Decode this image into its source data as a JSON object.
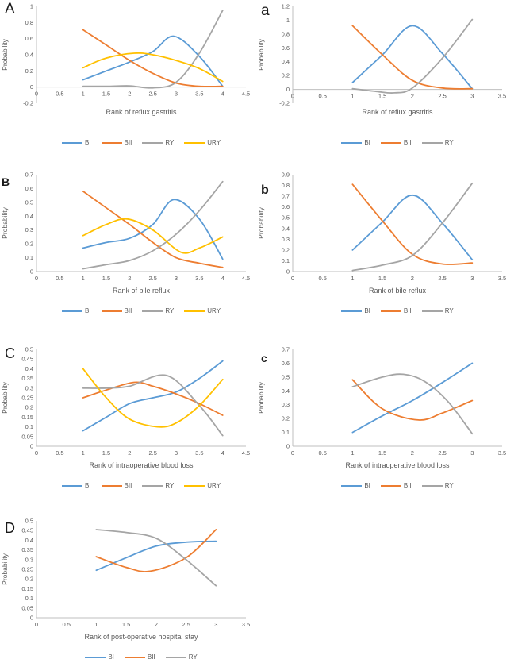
{
  "figure": {
    "background": "#ffffff",
    "axis_color": "#BFBFBF",
    "text_color": "#595959",
    "label_color": "#1a1a1a"
  },
  "palette": {
    "BI": "#5B9BD5",
    "BII": "#ED7D31",
    "RY": "#A5A5A5",
    "URY": "#FFC000"
  },
  "chart_data": [
    {
      "panel_label": "A",
      "type": "line",
      "title": "",
      "xlabel": "Rank of reflux gastritis",
      "ylabel": "Probability",
      "xlim": [
        0,
        4.5
      ],
      "xstep": 0.5,
      "ylim": [
        -0.2,
        1
      ],
      "ystep": 0.2,
      "grid": false,
      "legend_position": "bottom",
      "series": [
        {
          "name": "BI",
          "color": "#5B9BD5",
          "points": [
            [
              1,
              0.09
            ],
            [
              1.5,
              0.2
            ],
            [
              2,
              0.31
            ],
            [
              2.5,
              0.44
            ],
            [
              2.95,
              0.63
            ],
            [
              3.5,
              0.38
            ],
            [
              4,
              0.01
            ]
          ]
        },
        {
          "name": "BII",
          "color": "#ED7D31",
          "points": [
            [
              1,
              0.71
            ],
            [
              1.5,
              0.52
            ],
            [
              2,
              0.33
            ],
            [
              2.5,
              0.17
            ],
            [
              3,
              0.05
            ],
            [
              3.5,
              0.01
            ],
            [
              4,
              0.01
            ]
          ]
        },
        {
          "name": "RY",
          "color": "#A5A5A5",
          "points": [
            [
              1,
              0.01
            ],
            [
              1.5,
              0.01
            ],
            [
              2,
              0.015
            ],
            [
              2.5,
              -0.01
            ],
            [
              3,
              0.06
            ],
            [
              3.5,
              0.42
            ],
            [
              4,
              0.95
            ]
          ]
        },
        {
          "name": "URY",
          "color": "#FFC000",
          "points": [
            [
              1,
              0.24
            ],
            [
              1.5,
              0.36
            ],
            [
              2.1,
              0.42
            ],
            [
              2.5,
              0.4
            ],
            [
              3,
              0.33
            ],
            [
              3.5,
              0.23
            ],
            [
              4,
              0.07
            ]
          ]
        }
      ]
    },
    {
      "panel_label": "a",
      "type": "line",
      "title": "",
      "xlabel": "Rank of reflux gastritis",
      "ylabel": "Probability",
      "xlim": [
        0,
        3.5
      ],
      "xstep": 0.5,
      "ylim": [
        -0.2,
        1.2
      ],
      "ystep": 0.2,
      "grid": false,
      "legend_position": "bottom",
      "series": [
        {
          "name": "BI",
          "color": "#5B9BD5",
          "points": [
            [
              1,
              0.1
            ],
            [
              1.5,
              0.5
            ],
            [
              2,
              0.92
            ],
            [
              2.5,
              0.52
            ],
            [
              3,
              0.01
            ]
          ]
        },
        {
          "name": "BII",
          "color": "#ED7D31",
          "points": [
            [
              1,
              0.92
            ],
            [
              1.5,
              0.5
            ],
            [
              2,
              0.13
            ],
            [
              2.5,
              0.02
            ],
            [
              3,
              0.01
            ]
          ]
        },
        {
          "name": "RY",
          "color": "#A5A5A5",
          "points": [
            [
              1,
              0.01
            ],
            [
              1.4,
              -0.03
            ],
            [
              1.7,
              -0.05
            ],
            [
              2,
              0.02
            ],
            [
              2.5,
              0.45
            ],
            [
              3,
              1.01
            ]
          ]
        }
      ]
    },
    {
      "panel_label": "B",
      "type": "line",
      "title": "",
      "xlabel": "Rank of bile reflux",
      "ylabel": "Probability",
      "xlim": [
        0,
        4.5
      ],
      "xstep": 0.5,
      "ylim": [
        0,
        0.7
      ],
      "ystep": 0.1,
      "grid": false,
      "legend_position": "bottom",
      "series": [
        {
          "name": "BI",
          "color": "#5B9BD5",
          "points": [
            [
              1,
              0.17
            ],
            [
              1.5,
              0.21
            ],
            [
              2,
              0.24
            ],
            [
              2.5,
              0.34
            ],
            [
              2.95,
              0.52
            ],
            [
              3.5,
              0.38
            ],
            [
              4,
              0.09
            ]
          ]
        },
        {
          "name": "BII",
          "color": "#ED7D31",
          "points": [
            [
              1,
              0.58
            ],
            [
              1.5,
              0.46
            ],
            [
              2,
              0.34
            ],
            [
              2.5,
              0.21
            ],
            [
              3,
              0.1
            ],
            [
              3.5,
              0.06
            ],
            [
              4,
              0.03
            ]
          ]
        },
        {
          "name": "RY",
          "color": "#A5A5A5",
          "points": [
            [
              1,
              0.02
            ],
            [
              1.5,
              0.05
            ],
            [
              2,
              0.08
            ],
            [
              2.5,
              0.15
            ],
            [
              3,
              0.27
            ],
            [
              3.5,
              0.44
            ],
            [
              4,
              0.65
            ]
          ]
        },
        {
          "name": "URY",
          "color": "#FFC000",
          "points": [
            [
              1,
              0.26
            ],
            [
              1.5,
              0.34
            ],
            [
              1.95,
              0.38
            ],
            [
              2.5,
              0.3
            ],
            [
              3.1,
              0.14
            ],
            [
              3.5,
              0.17
            ],
            [
              4,
              0.25
            ]
          ]
        }
      ]
    },
    {
      "panel_label": "b",
      "type": "line",
      "title": "",
      "xlabel": "Rank of bile reflux",
      "ylabel": "Probability",
      "xlim": [
        0,
        3.5
      ],
      "xstep": 0.5,
      "ylim": [
        0,
        0.9
      ],
      "ystep": 0.1,
      "grid": false,
      "legend_position": "bottom",
      "series": [
        {
          "name": "BI",
          "color": "#5B9BD5",
          "points": [
            [
              1,
              0.2
            ],
            [
              1.5,
              0.46
            ],
            [
              2,
              0.71
            ],
            [
              2.5,
              0.45
            ],
            [
              3,
              0.11
            ]
          ]
        },
        {
          "name": "BII",
          "color": "#ED7D31",
          "points": [
            [
              1,
              0.81
            ],
            [
              1.5,
              0.47
            ],
            [
              2,
              0.16
            ],
            [
              2.5,
              0.07
            ],
            [
              3,
              0.08
            ]
          ]
        },
        {
          "name": "RY",
          "color": "#A5A5A5",
          "points": [
            [
              1,
              0.01
            ],
            [
              1.5,
              0.06
            ],
            [
              2,
              0.15
            ],
            [
              2.5,
              0.45
            ],
            [
              3,
              0.82
            ]
          ]
        }
      ]
    },
    {
      "panel_label": "C",
      "type": "line",
      "title": "",
      "xlabel": "Rank of intraoperative blood loss",
      "ylabel": "Probability",
      "xlim": [
        0,
        4.5
      ],
      "xstep": 0.5,
      "ylim": [
        0,
        0.5
      ],
      "ystep": 0.05,
      "grid": false,
      "legend_position": "bottom",
      "series": [
        {
          "name": "BI",
          "color": "#5B9BD5",
          "points": [
            [
              1,
              0.08
            ],
            [
              1.5,
              0.15
            ],
            [
              2,
              0.22
            ],
            [
              2.5,
              0.25
            ],
            [
              3,
              0.28
            ],
            [
              3.5,
              0.35
            ],
            [
              4,
              0.44
            ]
          ]
        },
        {
          "name": "BII",
          "color": "#ED7D31",
          "points": [
            [
              1,
              0.25
            ],
            [
              1.5,
              0.29
            ],
            [
              2.1,
              0.33
            ],
            [
              2.5,
              0.31
            ],
            [
              3,
              0.27
            ],
            [
              3.5,
              0.22
            ],
            [
              4,
              0.16
            ]
          ]
        },
        {
          "name": "RY",
          "color": "#A5A5A5",
          "points": [
            [
              1,
              0.3
            ],
            [
              1.5,
              0.3
            ],
            [
              2,
              0.31
            ],
            [
              2.8,
              0.365
            ],
            [
              3.5,
              0.21
            ],
            [
              4,
              0.055
            ]
          ]
        },
        {
          "name": "URY",
          "color": "#FFC000",
          "points": [
            [
              1,
              0.4
            ],
            [
              1.5,
              0.25
            ],
            [
              2,
              0.14
            ],
            [
              2.6,
              0.1
            ],
            [
              3,
              0.12
            ],
            [
              3.5,
              0.21
            ],
            [
              4,
              0.345
            ]
          ]
        }
      ]
    },
    {
      "panel_label": "c",
      "type": "line",
      "title": "",
      "xlabel": "Rank of intraoperative blood loss",
      "ylabel": "Probability",
      "xlim": [
        0,
        3.5
      ],
      "xstep": 0.5,
      "ylim": [
        0,
        0.7
      ],
      "ystep": 0.1,
      "grid": false,
      "legend_position": "bottom",
      "series": [
        {
          "name": "BI",
          "color": "#5B9BD5",
          "points": [
            [
              1,
              0.1
            ],
            [
              1.5,
              0.22
            ],
            [
              2,
              0.33
            ],
            [
              2.5,
              0.46
            ],
            [
              3,
              0.6
            ]
          ]
        },
        {
          "name": "BII",
          "color": "#ED7D31",
          "points": [
            [
              1,
              0.48
            ],
            [
              1.5,
              0.27
            ],
            [
              2.1,
              0.19
            ],
            [
              2.5,
              0.24
            ],
            [
              3,
              0.33
            ]
          ]
        },
        {
          "name": "RY",
          "color": "#A5A5A5",
          "points": [
            [
              1,
              0.43
            ],
            [
              1.5,
              0.5
            ],
            [
              1.85,
              0.52
            ],
            [
              2.2,
              0.47
            ],
            [
              2.6,
              0.32
            ],
            [
              3,
              0.09
            ]
          ]
        }
      ]
    },
    {
      "panel_label": "D",
      "type": "line",
      "title": "",
      "xlabel": "Rank of post-operative hospital stay",
      "ylabel": "Probability",
      "xlim": [
        0,
        3.5
      ],
      "xstep": 0.5,
      "ylim": [
        0,
        0.5
      ],
      "ystep": 0.05,
      "grid": false,
      "legend_position": "bottom",
      "series": [
        {
          "name": "BI",
          "color": "#5B9BD5",
          "points": [
            [
              1,
              0.245
            ],
            [
              1.5,
              0.31
            ],
            [
              2,
              0.37
            ],
            [
              2.5,
              0.39
            ],
            [
              3,
              0.395
            ]
          ]
        },
        {
          "name": "BII",
          "color": "#ED7D31",
          "points": [
            [
              1,
              0.315
            ],
            [
              1.5,
              0.26
            ],
            [
              1.9,
              0.24
            ],
            [
              2.5,
              0.31
            ],
            [
              3,
              0.455
            ]
          ]
        },
        {
          "name": "RY",
          "color": "#A5A5A5",
          "points": [
            [
              1,
              0.455
            ],
            [
              1.5,
              0.44
            ],
            [
              2,
              0.41
            ],
            [
              2.5,
              0.3
            ],
            [
              3,
              0.165
            ]
          ]
        }
      ]
    }
  ]
}
